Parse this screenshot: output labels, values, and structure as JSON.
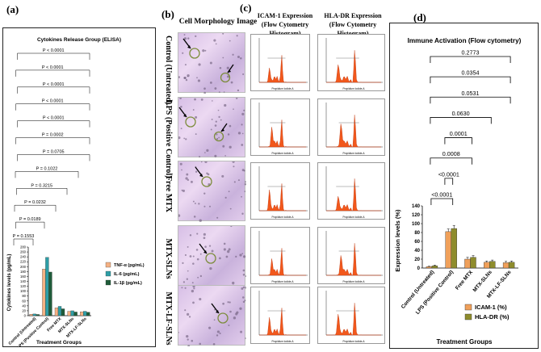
{
  "panel_labels": {
    "a": "(a)",
    "b": "(b)",
    "c": "(c)",
    "d": "(d)"
  },
  "headers": {
    "morphology": "Cell Morphology Image",
    "icam_line1": "ICAM-1 Expression",
    "icam_line2": "(Flow Cytometry Histogram)",
    "hla_line1": "HLA-DR Expression",
    "hla_line2": "(Flow Cytometry Histogram)"
  },
  "row_labels": [
    "Control (Untreated)",
    "LPS (Positive Control)",
    "Free MTX",
    "MTX-SLNs",
    "MTX-LF-SLNs"
  ],
  "histogram_axis": "Propidium Iodide-A",
  "chart_data": [
    {
      "type": "bar",
      "title": "Cytokines Release Group (ELISA)",
      "xlabel": "Treatment Groups",
      "ylabel": "Cytokines levels (pg/mL)",
      "ylim": [
        0,
        280
      ],
      "yticks": [
        0,
        20,
        40,
        60,
        80,
        100,
        120,
        140,
        160,
        180,
        200,
        220,
        240,
        260,
        280
      ],
      "categories": [
        "Control (Untreated)",
        "LPS (Positive Control)",
        "Free MTX",
        "MTX-SLNs",
        "MTX-LF-SLNs"
      ],
      "series": [
        {
          "name": "TNF-α (pg/mL)",
          "color": "#f4b183",
          "values": [
            6,
            190,
            32,
            18,
            16
          ]
        },
        {
          "name": "IL-6 (pg/mL)",
          "color": "#2e9ea6",
          "values": [
            7,
            238,
            38,
            20,
            18
          ]
        },
        {
          "name": "IL-1β (pg/mL)",
          "color": "#1f5c3a",
          "values": [
            5,
            178,
            28,
            15,
            14
          ]
        }
      ],
      "significance": [
        "P < 0.0001",
        "P < 0.0001",
        "P < 0.0001",
        "P < 0.0001",
        "P < 0.0001",
        "P = 0.0002",
        "P = 0.0705",
        "P = 0.1022",
        "P = 0.3215",
        "P = 0.0232",
        "P = 0.0189",
        "P = 0.1553"
      ],
      "legend_position": "right"
    },
    {
      "type": "bar",
      "title": "Immune Activation (Flow cytometry)",
      "xlabel": "Treatment Groups",
      "ylabel": "Expression levels (%)",
      "ylim": [
        0,
        140
      ],
      "yticks": [
        0,
        20,
        40,
        60,
        80,
        100,
        120,
        140
      ],
      "categories": [
        "Control (Untreated)",
        "LPS (Positive Control)",
        "Free MTX",
        "MTX-SLNs",
        "MTX-LF-SLNs"
      ],
      "series": [
        {
          "name": "ICAM-1 (%)",
          "color": "#f0a05a",
          "values": [
            3,
            82,
            20,
            13,
            12
          ],
          "errors": [
            1,
            6,
            4,
            3,
            3
          ]
        },
        {
          "name": "HLA-DR (%)",
          "color": "#8e8c2c",
          "values": [
            5,
            89,
            24,
            15,
            13
          ],
          "errors": [
            1.5,
            7,
            4,
            3,
            3
          ]
        }
      ],
      "significance": [
        "<0.0001",
        "<0.0001",
        "0.0008",
        "0.0001",
        "0.0630",
        "0.0531",
        "0.0354",
        "0.2773"
      ],
      "legend_position": "bottom-right"
    }
  ]
}
